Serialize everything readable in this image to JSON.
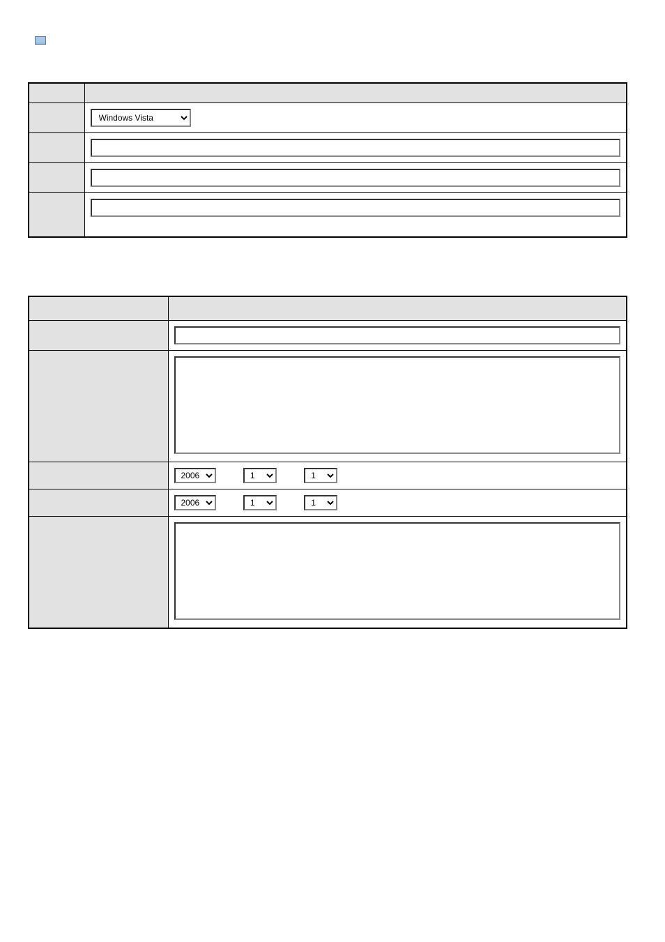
{
  "form1": {
    "rows": [
      {
        "label": "",
        "type": "header"
      },
      {
        "label": "",
        "type": "dropdown",
        "value": "Windows Vista"
      },
      {
        "label": "",
        "type": "text",
        "value": ""
      },
      {
        "label": "",
        "type": "text",
        "value": ""
      },
      {
        "label": "",
        "type": "text",
        "value": ""
      }
    ]
  },
  "form2": {
    "rows": [
      {
        "label": "",
        "type": "header"
      },
      {
        "label": "",
        "type": "text",
        "value": ""
      },
      {
        "label": "",
        "type": "textarea",
        "value": ""
      },
      {
        "label": "",
        "type": "date",
        "year": "2006",
        "month": "1",
        "day": "1"
      },
      {
        "label": "",
        "type": "date",
        "year": "2006",
        "month": "1",
        "day": "1"
      },
      {
        "label": "",
        "type": "textarea",
        "value": ""
      }
    ]
  },
  "colors": {
    "border": "#000000",
    "label_bg": "#e2e2e2",
    "page_bg": "#ffffff",
    "input_border": "#888888"
  },
  "dropdown_value": "Windows Vista",
  "year_value": "2006",
  "month_value": "1",
  "day_value": "1"
}
